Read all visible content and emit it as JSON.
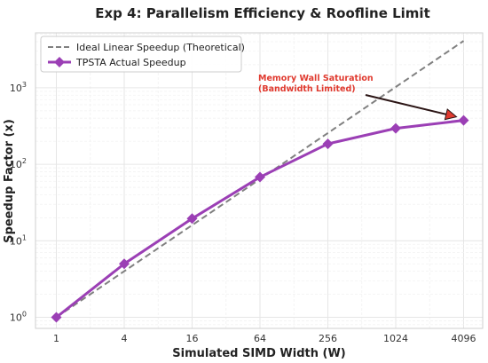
{
  "chart_data": {
    "type": "line",
    "title": "Exp 4: Parallelism Efficiency & Roofline Limit",
    "xlabel": "Simulated SIMD Width (W)",
    "ylabel": "Speedup Factor (x)",
    "x_scale": "log2",
    "y_scale": "log10",
    "x_ticks": [
      "1",
      "4",
      "16",
      "64",
      "256",
      "1024",
      "4096"
    ],
    "y_ticks": [
      {
        "base": "10",
        "exp": "0"
      },
      {
        "base": "10",
        "exp": "1"
      },
      {
        "base": "10",
        "exp": "2"
      },
      {
        "base": "10",
        "exp": "3"
      }
    ],
    "grid": true,
    "legend_position": "top-left",
    "series": [
      {
        "name": "Ideal Linear Speedup (Theoretical)",
        "style": "dashed",
        "color": "#808080",
        "x": [
          1,
          4096
        ],
        "y": [
          1,
          4096
        ]
      },
      {
        "name": "TPSTA Actual Speedup",
        "style": "solid",
        "marker": "diamond",
        "color": "#9b3fb5",
        "x": [
          1,
          4,
          16,
          64,
          256,
          1024,
          4096
        ],
        "y": [
          1.0,
          5.0,
          19.5,
          68,
          185,
          295,
          375
        ]
      }
    ],
    "annotation": {
      "line1": "Memory Wall Saturation",
      "line2": "(Bandwidth Limited)",
      "color": "#e03a2f",
      "x": 4096,
      "y": 375
    }
  }
}
